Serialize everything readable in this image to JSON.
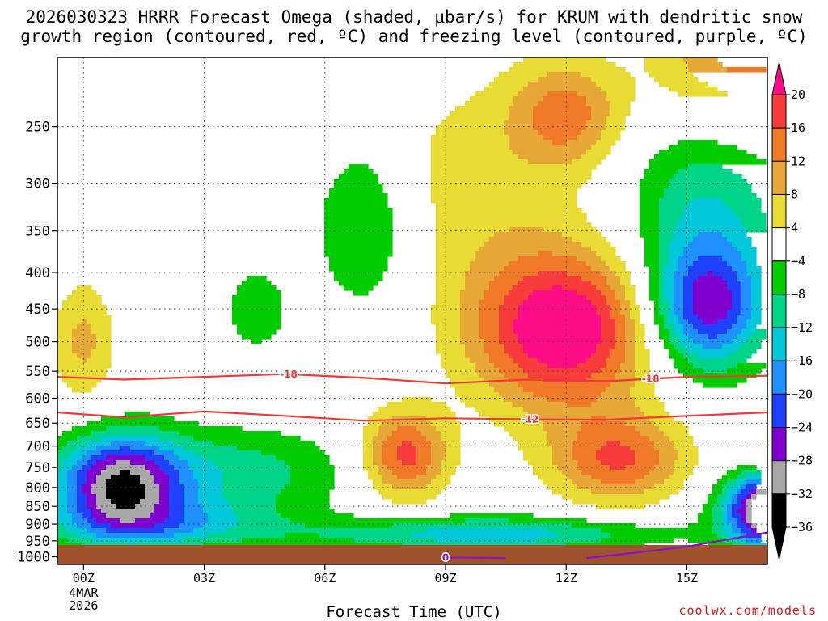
{
  "title_line1": "2026030323 HRRR Forecast Omega (shaded, μbar/s) for KRUM with dendritic snow",
  "title_line2": "growth region (contoured, red, ºC) and freezing level (contoured, purple, ºC)",
  "credit": "coolwx.com/models",
  "chart_data": {
    "type": "heatmap",
    "xlabel": "Forecast Time (UTC)",
    "ylabel": "",
    "x_ticks": [
      {
        "hour": 0,
        "label": "00Z",
        "sub": [
          "4MAR",
          "2026"
        ]
      },
      {
        "hour": 3,
        "label": "03Z"
      },
      {
        "hour": 6,
        "label": "06Z"
      },
      {
        "hour": 9,
        "label": "09Z"
      },
      {
        "hour": 12,
        "label": "12Z"
      },
      {
        "hour": 15,
        "label": "15Z"
      }
    ],
    "xlim": [
      -0.65,
      17
    ],
    "y_scale": "log",
    "ylim": [
      1025,
      200
    ],
    "y_ticks": [
      250,
      300,
      350,
      400,
      450,
      500,
      550,
      600,
      650,
      700,
      750,
      800,
      850,
      900,
      950,
      1000
    ],
    "colorbar": {
      "levels": [
        "20",
        "16",
        "12",
        "8",
        "4",
        "−4",
        "−8",
        "−12",
        "−16",
        "−20",
        "−24",
        "−28",
        "−32",
        "−36"
      ],
      "colors": [
        "#ff0c88",
        "#f83c3c",
        "#f07a28",
        "#e8a838",
        "#e8dc34",
        "#ffffff",
        "#00cc00",
        "#00d488",
        "#00c8d8",
        "#1e90ff",
        "#2040ff",
        "#8000d0",
        "#a8a8a8",
        "#000000"
      ]
    },
    "omega_fields": [
      {
        "name": "plume_high",
        "hour": 11.9,
        "p": 480,
        "amp": 25,
        "sx": 1.6,
        "sy": 0.18
      },
      {
        "name": "plume_tail",
        "hour": 13.3,
        "p": 730,
        "amp": 16,
        "sx": 1.2,
        "sy": 0.1
      },
      {
        "name": "plume_upper",
        "hour": 12.0,
        "p": 240,
        "amp": 13,
        "sx": 1.0,
        "sy": 0.12
      },
      {
        "name": "wave_mid",
        "hour": 8.0,
        "p": 720,
        "amp": 18,
        "sx": 0.75,
        "sy": 0.1
      },
      {
        "name": "ridge_upper",
        "hour": 9.5,
        "p": 300,
        "amp": 6,
        "sx": 2.0,
        "sy": 0.25
      },
      {
        "name": "corner_upper",
        "hour": 16.4,
        "p": 200,
        "amp": 14,
        "sx": 1.5,
        "sy": 0.16
      },
      {
        "name": "left_updraft",
        "hour": 0.0,
        "p": 500,
        "amp": 9,
        "sx": 0.55,
        "sy": 0.14
      },
      {
        "name": "left_down",
        "hour": 0.9,
        "p": 790,
        "amp": -30,
        "sx": 1.1,
        "sy": 0.11
      },
      {
        "name": "left_lower",
        "hour": 2.0,
        "p": 900,
        "amp": -12,
        "sx": 2.0,
        "sy": 0.06
      },
      {
        "name": "mid_down",
        "hour": 3.8,
        "p": 760,
        "amp": -10,
        "sx": 2.0,
        "sy": 0.1
      },
      {
        "name": "upper_down",
        "hour": 7.0,
        "p": 340,
        "amp": -10,
        "sx": 0.9,
        "sy": 0.2
      },
      {
        "name": "pocket_down",
        "hour": 4.3,
        "p": 450,
        "amp": -7,
        "sx": 0.6,
        "sy": 0.1
      },
      {
        "name": "right_down",
        "hour": 15.5,
        "p": 450,
        "amp": -24,
        "sx": 1.0,
        "sy": 0.14
      },
      {
        "name": "right_band",
        "hour": 15.5,
        "p": 330,
        "amp": -12,
        "sx": 1.4,
        "sy": 0.22
      },
      {
        "name": "lower_band",
        "hour": 10.0,
        "p": 930,
        "amp": -15,
        "sx": 3.0,
        "sy": 0.04
      },
      {
        "name": "corner_strong",
        "hour": 17.3,
        "p": 860,
        "amp": -45,
        "sx": 0.9,
        "sy": 0.08
      }
    ],
    "series": [
      {
        "name": "-18",
        "color": "#f03838",
        "label_at": [
          5.1,
          14.1
        ],
        "points": [
          [
            -0.65,
            560
          ],
          [
            1,
            565
          ],
          [
            3,
            560
          ],
          [
            5,
            555
          ],
          [
            7,
            562
          ],
          [
            9,
            572
          ],
          [
            11,
            565
          ],
          [
            13,
            568
          ],
          [
            15,
            560
          ],
          [
            17,
            558
          ]
        ]
      },
      {
        "name": "-12",
        "color": "#f03838",
        "label_at": [
          11.1
        ],
        "points": [
          [
            -0.65,
            628
          ],
          [
            1,
            638
          ],
          [
            3,
            626
          ],
          [
            5,
            635
          ],
          [
            7,
            645
          ],
          [
            9,
            640
          ],
          [
            11,
            642
          ],
          [
            13,
            643
          ],
          [
            15,
            635
          ],
          [
            17,
            628
          ]
        ]
      },
      {
        "name": "0",
        "color": "#8d0fc8",
        "label_at": [
          9.0
        ],
        "points": [
          [
            9.0,
            1002
          ],
          [
            10.5,
            1004
          ]
        ]
      },
      {
        "name": "0",
        "color": "#8d0fc8",
        "label_at": [],
        "points": [
          [
            12.5,
            1004
          ],
          [
            13.5,
            990
          ],
          [
            15,
            968
          ],
          [
            17,
            925
          ]
        ]
      }
    ]
  }
}
